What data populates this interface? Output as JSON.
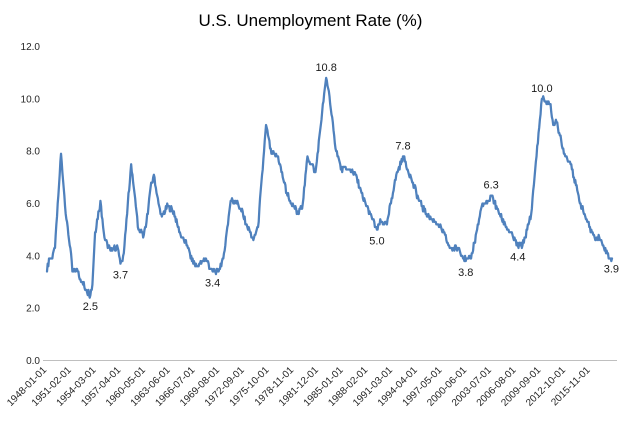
{
  "chart_data": {
    "type": "line",
    "title": "U.S. Unemployment Rate (%)",
    "series_name": "U.S. Unemployment Rate (%)",
    "xlabel": "",
    "ylabel": "",
    "ylim": [
      0.0,
      12.0
    ],
    "grid": false,
    "legend": "none",
    "line_color": "#4F81BD",
    "axis_line_color": "#BFBFBF",
    "tick_label_color": "#262626",
    "x_start": "1948-01",
    "x_end": "2018-07",
    "x_tick_interval_months": 37,
    "x_tick_labels": [
      "1948-01-01",
      "1951-02-01",
      "1954-03-01",
      "1957-04-01",
      "1960-05-01",
      "1963-06-01",
      "1966-07-01",
      "1969-08-01",
      "1972-09-01",
      "1975-10-01",
      "1978-11-01",
      "1981-12-01",
      "1985-01-01",
      "1988-02-01",
      "1991-03-01",
      "1994-04-01",
      "1997-05-01",
      "2000-06-01",
      "2003-07-01",
      "2006-08-01",
      "2009-09-01",
      "2012-10-01",
      "2015-11-01"
    ],
    "y_tick_labels": [
      "0.0",
      "2.0",
      "4.0",
      "6.0",
      "8.0",
      "10.0",
      "12.0"
    ],
    "anchor_points": [
      [
        "1948-01",
        3.4
      ],
      [
        "1948-04",
        3.9
      ],
      [
        "1948-08",
        3.9
      ],
      [
        "1949-01",
        4.3
      ],
      [
        "1949-10",
        7.9
      ],
      [
        "1950-03",
        6.3
      ],
      [
        "1950-06",
        5.4
      ],
      [
        "1950-12",
        4.3
      ],
      [
        "1951-03",
        3.4
      ],
      [
        "1951-10",
        3.5
      ],
      [
        "1952-05",
        3.0
      ],
      [
        "1952-12",
        2.7
      ],
      [
        "1953-06",
        2.5
      ],
      [
        "1953-09",
        2.9
      ],
      [
        "1954-01",
        4.9
      ],
      [
        "1954-09",
        6.1
      ],
      [
        "1955-03",
        4.7
      ],
      [
        "1955-12",
        4.2
      ],
      [
        "1956-05",
        4.3
      ],
      [
        "1956-11",
        4.3
      ],
      [
        "1957-03",
        3.7
      ],
      [
        "1957-08",
        4.1
      ],
      [
        "1958-07",
        7.5
      ],
      [
        "1959-02",
        5.9
      ],
      [
        "1959-06",
        5.0
      ],
      [
        "1960-02",
        4.8
      ],
      [
        "1960-05",
        5.1
      ],
      [
        "1960-12",
        6.6
      ],
      [
        "1961-05",
        7.1
      ],
      [
        "1961-12",
        6.0
      ],
      [
        "1962-05",
        5.5
      ],
      [
        "1963-02",
        5.9
      ],
      [
        "1963-11",
        5.7
      ],
      [
        "1964-07",
        4.9
      ],
      [
        "1965-07",
        4.4
      ],
      [
        "1966-02",
        3.8
      ],
      [
        "1966-11",
        3.6
      ],
      [
        "1967-10",
        3.9
      ],
      [
        "1968-09",
        3.4
      ],
      [
        "1969-05",
        3.4
      ],
      [
        "1970-01",
        3.9
      ],
      [
        "1970-12",
        6.1
      ],
      [
        "1971-08",
        6.1
      ],
      [
        "1972-03",
        5.8
      ],
      [
        "1972-12",
        5.2
      ],
      [
        "1973-10",
        4.6
      ],
      [
        "1974-05",
        5.1
      ],
      [
        "1975-05",
        9.0
      ],
      [
        "1976-01",
        7.9
      ],
      [
        "1976-11",
        7.8
      ],
      [
        "1977-12",
        6.4
      ],
      [
        "1978-05",
        6.1
      ],
      [
        "1979-05",
        5.6
      ],
      [
        "1979-12",
        6.0
      ],
      [
        "1980-07",
        7.8
      ],
      [
        "1981-01",
        7.5
      ],
      [
        "1981-07",
        7.2
      ],
      [
        "1982-03",
        9.0
      ],
      [
        "1982-11",
        10.8
      ],
      [
        "1983-03",
        10.3
      ],
      [
        "1983-12",
        8.3
      ],
      [
        "1984-09",
        7.3
      ],
      [
        "1985-06",
        7.3
      ],
      [
        "1986-06",
        7.2
      ],
      [
        "1987-06",
        6.2
      ],
      [
        "1988-05",
        5.6
      ],
      [
        "1989-03",
        5.0
      ],
      [
        "1989-09",
        5.3
      ],
      [
        "1990-06",
        5.2
      ],
      [
        "1991-06",
        6.9
      ],
      [
        "1992-06",
        7.8
      ],
      [
        "1993-06",
        7.0
      ],
      [
        "1994-06",
        6.1
      ],
      [
        "1995-05",
        5.6
      ],
      [
        "1996-06",
        5.3
      ],
      [
        "1997-07",
        4.9
      ],
      [
        "1998-04",
        4.3
      ],
      [
        "1999-06",
        4.3
      ],
      [
        "2000-04",
        3.8
      ],
      [
        "2000-12",
        3.9
      ],
      [
        "2001-09",
        5.0
      ],
      [
        "2002-04",
        5.9
      ],
      [
        "2002-12",
        6.0
      ],
      [
        "2003-06",
        6.3
      ],
      [
        "2004-03",
        5.8
      ],
      [
        "2005-03",
        5.2
      ],
      [
        "2006-03",
        4.7
      ],
      [
        "2006-10",
        4.4
      ],
      [
        "2007-05",
        4.4
      ],
      [
        "2007-12",
        5.0
      ],
      [
        "2008-06",
        5.6
      ],
      [
        "2008-12",
        7.3
      ],
      [
        "2009-10",
        10.0
      ],
      [
        "2010-04",
        9.9
      ],
      [
        "2010-11",
        9.8
      ],
      [
        "2011-03",
        9.0
      ],
      [
        "2011-09",
        9.1
      ],
      [
        "2012-04",
        8.2
      ],
      [
        "2012-10",
        7.8
      ],
      [
        "2013-06",
        7.5
      ],
      [
        "2014-06",
        6.1
      ],
      [
        "2015-06",
        5.3
      ],
      [
        "2016-05",
        4.7
      ],
      [
        "2016-12",
        4.7
      ],
      [
        "2017-07",
        4.3
      ],
      [
        "2018-04",
        3.9
      ],
      [
        "2018-07",
        3.9
      ]
    ],
    "annotations": [
      {
        "text": "2.5",
        "date": "1953-06",
        "value": 2.5,
        "placement": "below"
      },
      {
        "text": "3.7",
        "date": "1957-03",
        "value": 3.7,
        "placement": "below"
      },
      {
        "text": "3.4",
        "date": "1968-09",
        "value": 3.4,
        "placement": "below"
      },
      {
        "text": "10.8",
        "date": "1982-11",
        "value": 10.8,
        "placement": "above"
      },
      {
        "text": "5.0",
        "date": "1989-03",
        "value": 5.0,
        "placement": "below"
      },
      {
        "text": "7.8",
        "date": "1992-06",
        "value": 7.8,
        "placement": "above"
      },
      {
        "text": "3.8",
        "date": "2000-04",
        "value": 3.8,
        "placement": "below"
      },
      {
        "text": "6.3",
        "date": "2003-06",
        "value": 6.3,
        "placement": "above"
      },
      {
        "text": "4.4",
        "date": "2006-10",
        "value": 4.4,
        "placement": "below"
      },
      {
        "text": "10.0",
        "date": "2009-10",
        "value": 10.0,
        "placement": "above"
      },
      {
        "text": "3.9",
        "date": "2018-07",
        "value": 3.9,
        "placement": "below-end"
      }
    ]
  }
}
